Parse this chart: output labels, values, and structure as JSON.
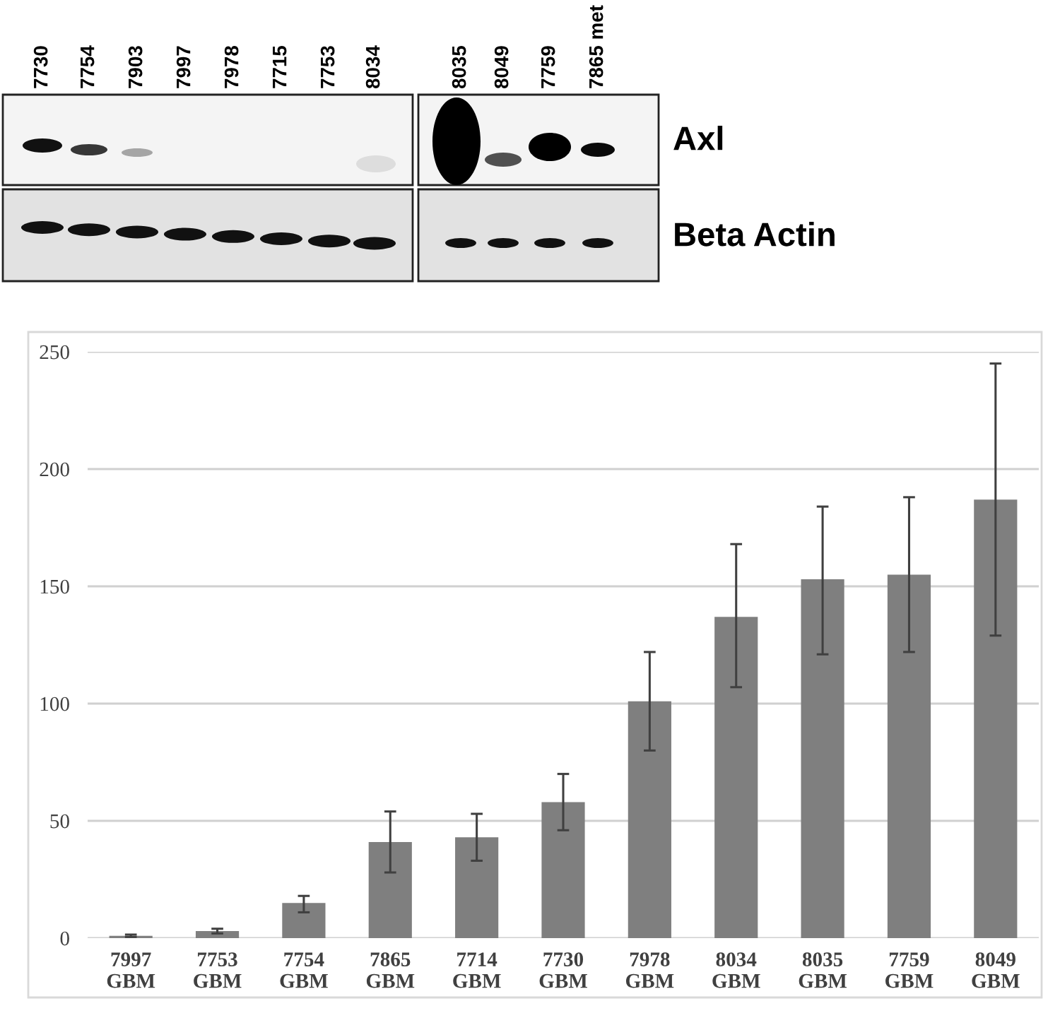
{
  "chart_data": [
    {
      "type": "other",
      "annotations": [
        "7730",
        "7754",
        "7903",
        "7997",
        "7978",
        "7715",
        "7753",
        "8034",
        "8035",
        "8049",
        "7759",
        "7865 met",
        "Axl",
        "Beta Actin"
      ]
    },
    {
      "type": "bar",
      "categories": [
        "7997\nGBM",
        "7753\nGBM",
        "7754\nGBM",
        "7865\nGBM",
        "7714\nGBM",
        "7730\nGBM",
        "7978\nGBM",
        "8034\nGBM",
        "8035\nGBM",
        "7759\nGBM",
        "8049\nGBM"
      ],
      "values": [
        1,
        3,
        15,
        41,
        43,
        58,
        101,
        137,
        153,
        155,
        187
      ],
      "errors": [
        [
          0.5,
          1.5
        ],
        [
          2,
          4
        ],
        [
          11,
          18
        ],
        [
          28,
          54
        ],
        [
          33,
          53
        ],
        [
          46,
          70
        ],
        [
          80,
          122
        ],
        [
          107,
          168
        ],
        [
          121,
          184
        ],
        [
          122,
          188
        ],
        [
          129,
          245
        ]
      ],
      "color": "#7f7f7f",
      "ylim": [
        0,
        250
      ],
      "yticks": [
        0,
        50,
        100,
        150,
        200,
        250
      ],
      "grid": "y"
    }
  ]
}
